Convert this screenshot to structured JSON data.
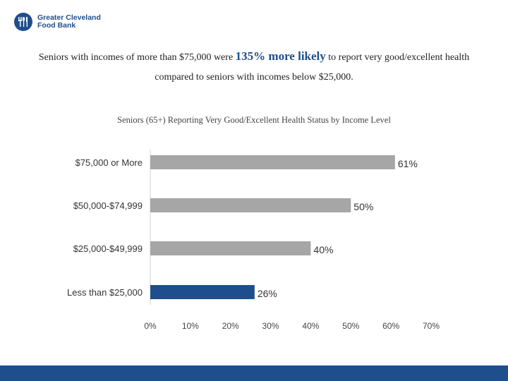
{
  "brand": {
    "name_line1": "Greater Cleveland",
    "name_line2": "Food Bank",
    "logo_icon": "fork-spoon-knife-icon"
  },
  "headline": {
    "before": "Seniors with incomes of more than $75,000 were ",
    "highlight": "135% more likely",
    "after": " to report very good/excellent health compared to seniors with incomes below $25,000."
  },
  "colors": {
    "accent": "#1f4e8c",
    "bar_gray": "#a6a6a6",
    "bar_highlight": "#1f4e8c"
  },
  "chart_data": {
    "type": "bar",
    "orientation": "horizontal",
    "title": "Seniors (65+) Reporting Very Good/Excellent Health Status by Income Level",
    "categories": [
      "$75,000 or More",
      "$50,000-$74,999",
      "$25,000-$49,999",
      "Less than $25,000"
    ],
    "values": [
      61,
      50,
      40,
      26
    ],
    "value_labels": [
      "61%",
      "50%",
      "40%",
      "26%"
    ],
    "highlight_index": 3,
    "xlim": [
      0,
      70
    ],
    "x_ticks": [
      "0%",
      "10%",
      "20%",
      "30%",
      "40%",
      "50%",
      "60%",
      "70%"
    ],
    "xlabel": "",
    "ylabel": "",
    "grid": false
  }
}
